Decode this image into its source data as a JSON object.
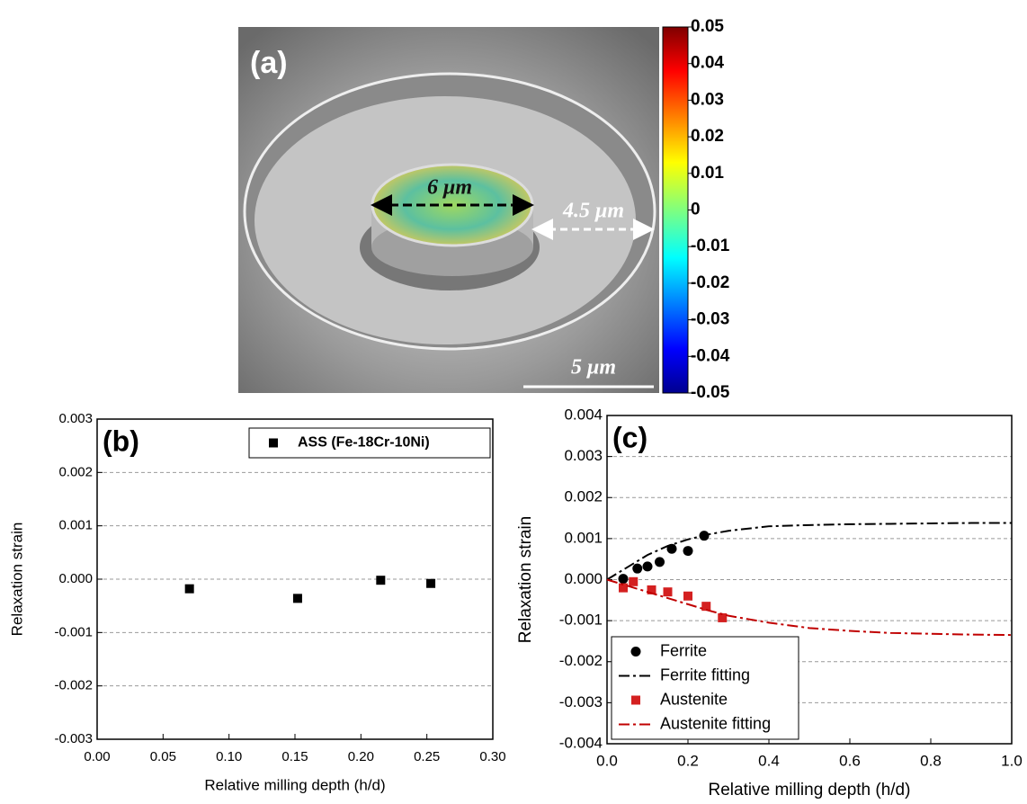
{
  "chart_data": [
    {
      "type": "image",
      "title": "(a)",
      "annotations": [
        "6 μm",
        "4.5 μm",
        "5 μm"
      ],
      "ylim": [
        -0.05,
        0.05
      ],
      "yticks": [
        0.05,
        0.04,
        0.03,
        0.02,
        0.01,
        0,
        -0.01,
        -0.02,
        -0.03,
        -0.04,
        -0.05
      ]
    },
    {
      "type": "scatter",
      "title": "(b)",
      "x_label": "Relative milling depth (h/d)",
      "y_label": "Relaxation strain",
      "xlim": [
        0,
        0.3
      ],
      "xticks": [
        {
          "value": 0,
          "label": "0.00"
        },
        0.05,
        {
          "value": 0.1,
          "label": "0.10"
        },
        0.15,
        {
          "value": 0.2,
          "label": "0.20"
        },
        0.25,
        {
          "value": 0.3,
          "label": "0.30"
        }
      ],
      "ylim": [
        -0.003,
        0.003
      ],
      "yticks": [
        -0.003,
        -0.002,
        -0.001,
        {
          "value": 0,
          "label": "0.000"
        },
        0.001,
        0.002,
        0.003
      ],
      "grid": true,
      "legend": "upper right",
      "series": [
        {
          "name": "ASS (Fe-18Cr-10Ni)",
          "color": "#000000",
          "mode": "markers",
          "marker": "square",
          "x": [
            0.07,
            0.152,
            0.215,
            0.253
          ],
          "values": [
            -0.00018,
            -0.00036,
            -2e-05,
            -8e-05
          ]
        }
      ]
    },
    {
      "type": "scatter",
      "title": "(c)",
      "x_label": "Relative milling depth (h/d)",
      "y_label": "Relaxation strain",
      "xlim": [
        0,
        1
      ],
      "xticks": [
        {
          "value": 0,
          "label": "0.0"
        },
        0.2,
        0.4,
        0.6,
        0.8,
        {
          "value": 1,
          "label": "1.0"
        }
      ],
      "ylim": [
        -0.004,
        0.004
      ],
      "yticks": [
        -0.004,
        -0.003,
        -0.002,
        -0.001,
        {
          "value": 0,
          "label": "0.000"
        },
        0.001,
        0.002,
        0.003,
        0.004
      ],
      "grid": true,
      "legend": "lower left",
      "series": [
        {
          "name": "Ferrite",
          "color": "#000000",
          "mode": "markers",
          "marker": "circle",
          "x": [
            0.04,
            0.075,
            0.1,
            0.13,
            0.16,
            0.2,
            0.24
          ],
          "values": [
            2e-05,
            0.00027,
            0.00032,
            0.00043,
            0.00075,
            0.0007,
            0.00107
          ]
        },
        {
          "name": "Ferrite fitting",
          "color": "#000000",
          "mode": "lines",
          "dash": "dashdot",
          "x": [
            0,
            0.05,
            0.1,
            0.15,
            0.2,
            0.25,
            0.3,
            0.4,
            0.5,
            0.6,
            0.7,
            0.8,
            0.9,
            1
          ],
          "values": [
            0,
            0.0003,
            0.0006,
            0.00082,
            0.00098,
            0.0011,
            0.00119,
            0.0013,
            0.00133,
            0.00135,
            0.00136,
            0.00137,
            0.00138,
            0.00138
          ]
        },
        {
          "name": "Austenite",
          "color": "#d42020",
          "mode": "markers",
          "marker": "square",
          "x": [
            0.04,
            0.065,
            0.11,
            0.15,
            0.2,
            0.245,
            0.285
          ],
          "values": [
            -0.0002,
            -5e-05,
            -0.00025,
            -0.0003,
            -0.0004,
            -0.00065,
            -0.00093
          ]
        },
        {
          "name": "Austenite fitting",
          "color": "#c00000",
          "mode": "lines",
          "dash": "dashdot",
          "x": [
            0,
            0.05,
            0.1,
            0.15,
            0.2,
            0.25,
            0.3,
            0.4,
            0.5,
            0.6,
            0.7,
            0.8,
            0.9,
            1
          ],
          "values": [
            0,
            -0.00015,
            -0.0003,
            -0.00045,
            -0.0006,
            -0.00075,
            -0.00088,
            -0.00105,
            -0.00118,
            -0.00125,
            -0.0013,
            -0.00132,
            -0.00134,
            -0.00135
          ]
        }
      ]
    }
  ]
}
